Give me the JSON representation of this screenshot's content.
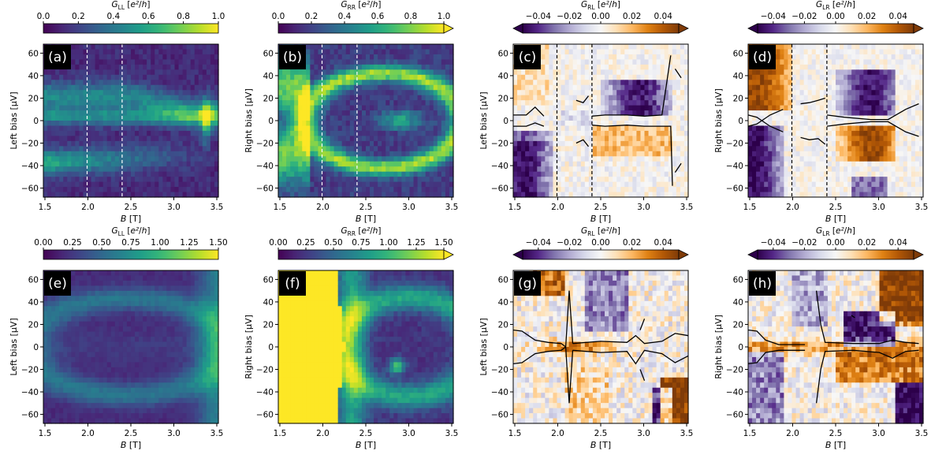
{
  "figure": {
    "colors": {
      "viridis": [
        "#440154",
        "#482878",
        "#3e4989",
        "#31688e",
        "#26828e",
        "#1f9e89",
        "#35b779",
        "#6ece58",
        "#b5de2b",
        "#fde725"
      ],
      "puor": [
        "#2d004b",
        "#542788",
        "#8073ac",
        "#b2abd2",
        "#d8daeb",
        "#f7f7f7",
        "#fee0b6",
        "#fdb863",
        "#e08214",
        "#b35806",
        "#7f3b08"
      ],
      "label_box": "#000000",
      "label_text": "#ffffff",
      "dashed_line": "#ffffff",
      "dashed_line_dark": "#000000",
      "contour": "#000000"
    }
  },
  "chart_data": [
    {
      "type": "heatmap",
      "label": "(a)",
      "colormap": "viridis",
      "colorbar": {
        "label": "G_LL [e²/h]",
        "range": [
          0,
          1
        ],
        "ticks": [
          "0.0",
          "0.2",
          "0.4",
          "0.6",
          "0.8",
          "1.0"
        ],
        "extend": "none"
      },
      "xlabel": "B [T]",
      "ylabel": "Left bias [μV]",
      "xlim": [
        1.5,
        3.5
      ],
      "ylim": [
        -68,
        68
      ],
      "xticks": [
        "1.5",
        "2.0",
        "2.5",
        "3.0",
        "3.5"
      ],
      "yticks": [
        "−60",
        "−40",
        "−20",
        "0",
        "20",
        "40",
        "60"
      ],
      "dashed_lines": [
        2.0,
        2.4
      ]
    },
    {
      "type": "heatmap",
      "label": "(b)",
      "colormap": "viridis",
      "colorbar": {
        "label": "G_RR [e²/h]",
        "range": [
          0,
          1
        ],
        "ticks": [
          "0.0",
          "0.2",
          "0.4",
          "0.6",
          "0.8",
          "1.0"
        ],
        "extend": "max"
      },
      "xlabel": "B [T]",
      "ylabel": "Right bias [μV]",
      "xlim": [
        1.5,
        3.5
      ],
      "ylim": [
        -68,
        68
      ],
      "xticks": [
        "1.5",
        "2.0",
        "2.5",
        "3.0",
        "3.5"
      ],
      "yticks": [
        "−60",
        "−40",
        "−20",
        "0",
        "20",
        "40",
        "60"
      ],
      "dashed_lines": [
        2.0,
        2.4
      ]
    },
    {
      "type": "heatmap",
      "label": "(c)",
      "colormap": "PuOr",
      "colorbar": {
        "label": "G_RL [e²/h]",
        "range": [
          -0.05,
          0.05
        ],
        "ticks": [
          "−0.04",
          "−0.02",
          "0.00",
          "0.02",
          "0.04"
        ],
        "extend": "both"
      },
      "xlabel": "B [T]",
      "ylabel": "Left bias [μV]",
      "xlim": [
        1.5,
        3.5
      ],
      "ylim": [
        -68,
        68
      ],
      "xticks": [
        "1.5",
        "2.0",
        "2.5",
        "3.0",
        "3.5"
      ],
      "yticks": [
        "−60",
        "−40",
        "−20",
        "0",
        "20",
        "40",
        "60"
      ],
      "dashed_lines": [
        2.0,
        2.4
      ]
    },
    {
      "type": "heatmap",
      "label": "(d)",
      "colormap": "PuOr",
      "colorbar": {
        "label": "G_LR [e²/h]",
        "range": [
          -0.05,
          0.05
        ],
        "ticks": [
          "−0.04",
          "−0.02",
          "0.00",
          "0.02",
          "0.04"
        ],
        "extend": "both"
      },
      "xlabel": "B [T]",
      "ylabel": "Right bias [μV]",
      "xlim": [
        1.5,
        3.5
      ],
      "ylim": [
        -68,
        68
      ],
      "xticks": [
        "1.5",
        "2.0",
        "2.5",
        "3.0",
        "3.5"
      ],
      "yticks": [
        "−60",
        "−40",
        "−20",
        "0",
        "20",
        "40",
        "60"
      ],
      "dashed_lines": [
        2.0,
        2.4
      ]
    },
    {
      "type": "heatmap",
      "label": "(e)",
      "colormap": "viridis",
      "colorbar": {
        "label": "G_LL [e²/h]",
        "range": [
          0,
          1.5
        ],
        "ticks": [
          "0.00",
          "0.25",
          "0.50",
          "0.75",
          "1.00",
          "1.25",
          "1.50"
        ],
        "extend": "none"
      },
      "xlabel": "B [T]",
      "ylabel": "Left bias [μV]",
      "xlim": [
        1.5,
        3.5
      ],
      "ylim": [
        -68,
        68
      ],
      "xticks": [
        "1.5",
        "2.0",
        "2.5",
        "3.0",
        "3.5"
      ],
      "yticks": [
        "−60",
        "−40",
        "−20",
        "0",
        "20",
        "40",
        "60"
      ],
      "dashed_lines": []
    },
    {
      "type": "heatmap",
      "label": "(f)",
      "colormap": "viridis",
      "colorbar": {
        "label": "G_RR [e²/h]",
        "range": [
          0,
          1.5
        ],
        "ticks": [
          "0.00",
          "0.25",
          "0.50",
          "0.75",
          "1.00",
          "1.25",
          "1.50"
        ],
        "extend": "max"
      },
      "xlabel": "B [T]",
      "ylabel": "Right bias [μV]",
      "xlim": [
        1.5,
        3.5
      ],
      "ylim": [
        -68,
        68
      ],
      "xticks": [
        "1.5",
        "2.0",
        "2.5",
        "3.0",
        "3.5"
      ],
      "yticks": [
        "−60",
        "−40",
        "−20",
        "0",
        "20",
        "40",
        "60"
      ],
      "dashed_lines": []
    },
    {
      "type": "heatmap",
      "label": "(g)",
      "colormap": "PuOr",
      "colorbar": {
        "label": "G_RL [e²/h]",
        "range": [
          -0.05,
          0.05
        ],
        "ticks": [
          "−0.04",
          "−0.02",
          "0.00",
          "0.02",
          "0.04"
        ],
        "extend": "both"
      },
      "xlabel": "B [T]",
      "ylabel": "Left bias [μV]",
      "xlim": [
        1.5,
        3.5
      ],
      "ylim": [
        -68,
        68
      ],
      "xticks": [
        "1.5",
        "2.0",
        "2.5",
        "3.0",
        "3.5"
      ],
      "yticks": [
        "−60",
        "−40",
        "−20",
        "0",
        "20",
        "40",
        "60"
      ],
      "dashed_lines": []
    },
    {
      "type": "heatmap",
      "label": "(h)",
      "colormap": "PuOr",
      "colorbar": {
        "label": "G_LR [e²/h]",
        "range": [
          -0.05,
          0.05
        ],
        "ticks": [
          "−0.04",
          "−0.02",
          "0.00",
          "0.02",
          "0.04"
        ],
        "extend": "both"
      },
      "xlabel": "B [T]",
      "ylabel": "Right bias [μV]",
      "xlim": [
        1.5,
        3.5
      ],
      "ylim": [
        -68,
        68
      ],
      "xticks": [
        "1.5",
        "2.0",
        "2.5",
        "3.0",
        "3.5"
      ],
      "yticks": [
        "−60",
        "−40",
        "−20",
        "0",
        "20",
        "40",
        "60"
      ],
      "dashed_lines": []
    }
  ]
}
